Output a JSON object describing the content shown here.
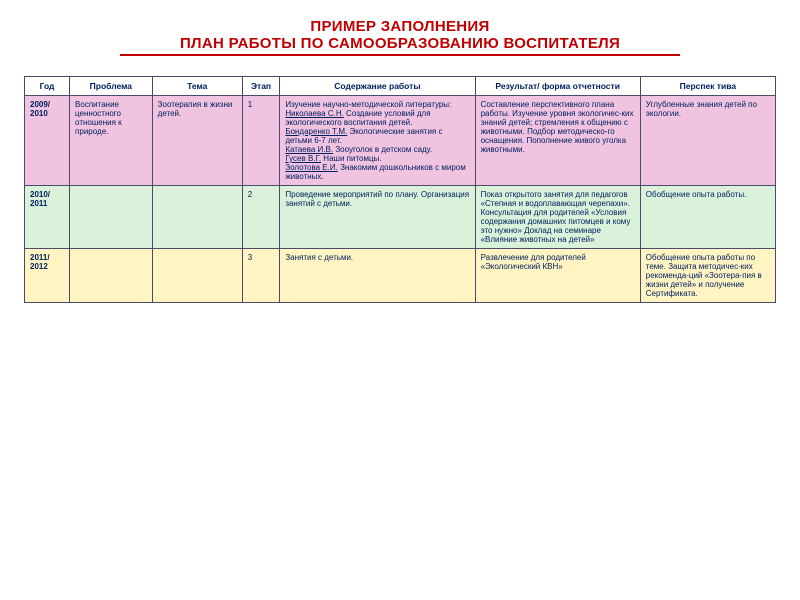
{
  "title": {
    "line1": "ПРИМЕР ЗАПОЛНЕНИЯ",
    "line2": "ПЛАН РАБОТЫ ПО САМООБРАЗОВАНИЮ ВОСПИТАТЕЛЯ"
  },
  "headers": {
    "year": "Год",
    "problem": "Проблема",
    "theme": "Тема",
    "stage": "Этап",
    "content": "Содержание работы",
    "result": "Результат/ форма отчетности",
    "perspective": "Перспек тива"
  },
  "rows": [
    {
      "year": "2009/ 2010",
      "problem": "Воспитание ценностного отношения к природе.",
      "theme": "Зоотерапия в жизни детей.",
      "stage": "1",
      "content_intro": "Изучение научно-методической литературы:",
      "content_lines": [
        {
          "author": "Николаева С.Н.",
          "rest": " Создание условий для экологического воспитания детей."
        },
        {
          "author": "Бондаренко Т.М.",
          "rest": " Экологические занятия с детьми 6-7 лет."
        },
        {
          "author": "Катаева И.В.",
          "rest": " Зооуголок в детском саду."
        },
        {
          "author": "Гусев В.Г.",
          "rest": " Наши питомцы."
        },
        {
          "author": "Золотова Е.И.",
          "rest": " Знакомим дошкольников с миром животных."
        }
      ],
      "result": "Составление перспективного плана работы. Изучение уровня экологичес-ких знаний детей; стремления к  общению с животными. Подбор методическо-го оснащения. Пополнение живого  уголка животными.",
      "perspective": "Углубленные знания детей по экологии."
    },
    {
      "year": "2010/ 2011",
      "problem": "",
      "theme": "",
      "stage": "2",
      "content": "Проведение мероприятий по плану. Организация занятий с детьми.",
      "result": "Показ открытого занятия для педагогов «Степная и водоплавающая черепахи». Консультация для родителей «Условия содержания домашних питомцев и кому это нужно» Доклад на семинаре «Влияние животных на детей»",
      "perspective": "Обобщение опыта работы."
    },
    {
      "year": "2011/ 2012",
      "problem": "",
      "theme": "",
      "stage": "3",
      "content": "Занятия с детьми.",
      "result": "Развлечение для родителей «Экологический КВН»",
      "perspective": "Обобщение опыта работы по теме. Защита методичес-ких рекоменда-ций «Зоотера-пия в жизни детей» и получение Сертификата."
    }
  ],
  "colors": {
    "title_color": "#c00000",
    "text_color": "#002060",
    "border_color": "#4a4a6a",
    "row_bg": [
      "#f0c4e0",
      "#d9f2d9",
      "#fff4c2"
    ],
    "header_bg": "#ffffff",
    "page_bg": "#ffffff"
  },
  "typography": {
    "title_fontsize_pt": 12,
    "table_fontsize_pt": 6.5,
    "font_family": "Arial"
  },
  "layout": {
    "table_width_pct": 94,
    "col_widths_pct": [
      6,
      11,
      12,
      5,
      26,
      22,
      18
    ]
  }
}
